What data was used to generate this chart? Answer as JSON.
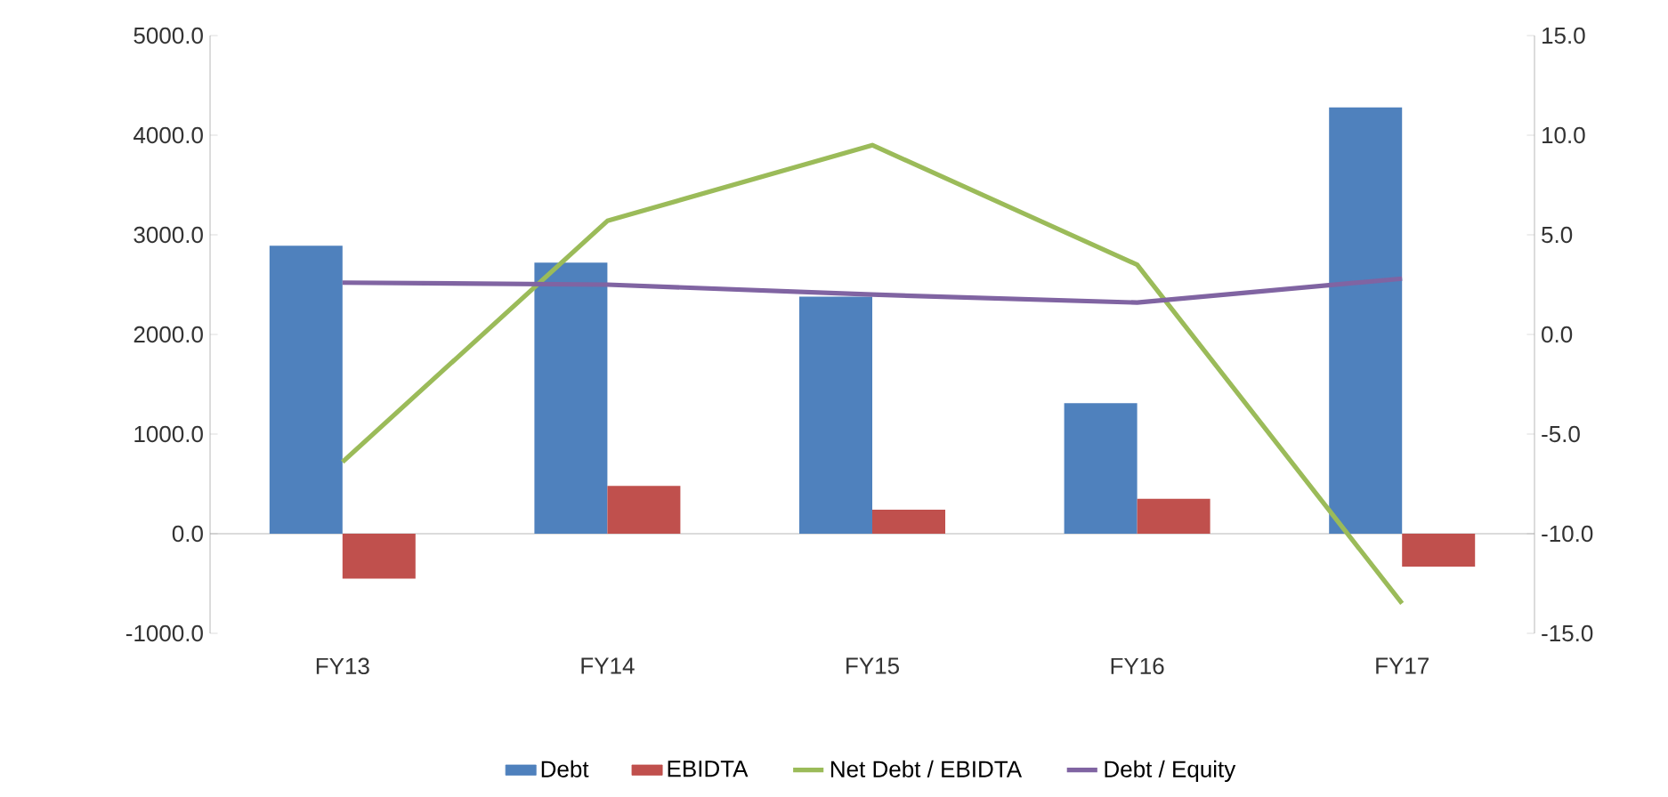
{
  "chart_data": {
    "type": "bar",
    "categories": [
      "FY13",
      "FY14",
      "FY15",
      "FY16",
      "FY17"
    ],
    "series": [
      {
        "name": "Debt",
        "color": "#4f81bd",
        "values": [
          2890,
          2720,
          2380,
          1310,
          4280
        ]
      },
      {
        "name": "EBIDTA",
        "color": "#c0504d",
        "values": [
          -450,
          480,
          240,
          350,
          -330
        ]
      },
      {
        "name": "Net Debt / EBIDTA",
        "type": "line",
        "axis": "y2",
        "color": "#9bbb59",
        "values": [
          -6.4,
          5.7,
          9.5,
          3.5,
          -13.5
        ]
      },
      {
        "name": "Debt / Equity",
        "type": "line",
        "axis": "y2",
        "color": "#8064a2",
        "values": [
          2.6,
          2.5,
          2.0,
          1.6,
          2.8
        ]
      }
    ],
    "ylim": [
      -1000,
      5000
    ],
    "yticks": [
      {
        "value": -1000,
        "label": "-1000.0"
      },
      {
        "value": 0,
        "label": "0.0"
      },
      {
        "value": 1000,
        "label": "1000.0"
      },
      {
        "value": 2000,
        "label": "2000.0"
      },
      {
        "value": 3000,
        "label": "3000.0"
      },
      {
        "value": 4000,
        "label": "4000.0"
      },
      {
        "value": 5000,
        "label": "5000.0"
      }
    ],
    "y2lim": [
      -15,
      15
    ],
    "y2ticks": [
      {
        "value": -15,
        "label": "-15.0"
      },
      {
        "value": -10,
        "label": "-10.0"
      },
      {
        "value": -5,
        "label": "-5.0"
      },
      {
        "value": 0,
        "label": "0.0"
      },
      {
        "value": 5,
        "label": "5.0"
      },
      {
        "value": 10,
        "label": "10.0"
      },
      {
        "value": 15,
        "label": "15.0"
      }
    ],
    "legend": "bottom",
    "marker": "none"
  }
}
